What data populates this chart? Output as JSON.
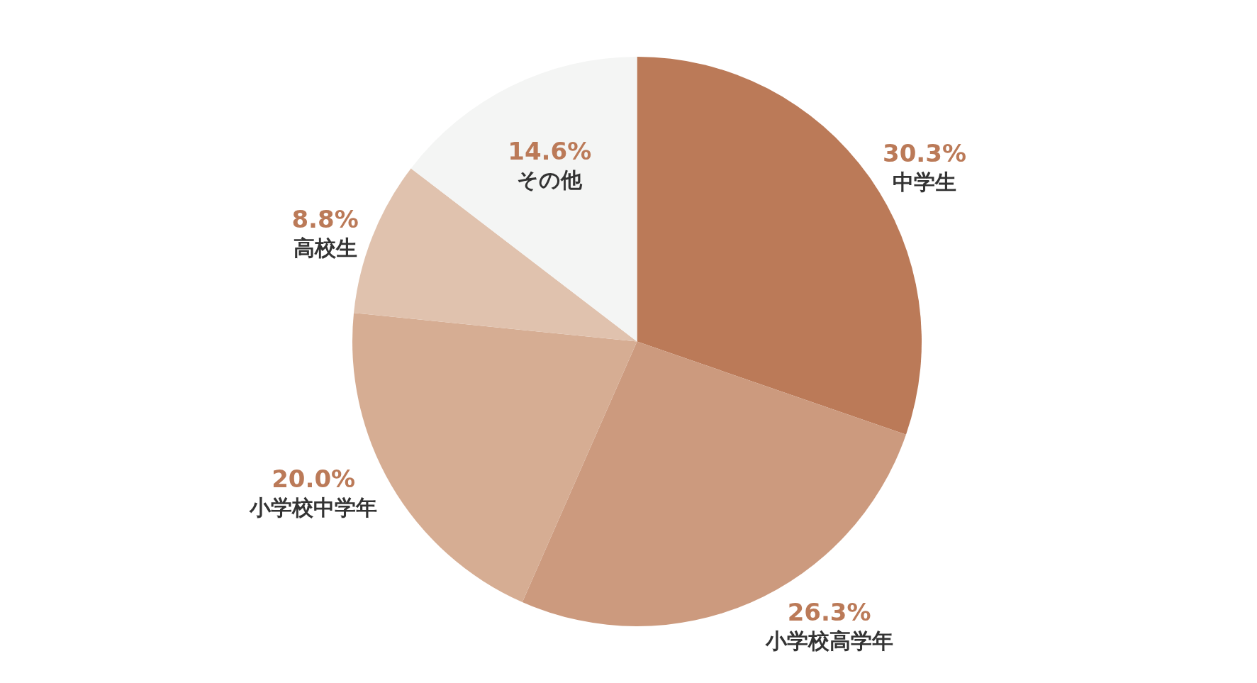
{
  "chart_data": {
    "type": "pie",
    "categories": [
      "中学生",
      "小学校高学年",
      "小学校中学年",
      "高校生",
      "その他"
    ],
    "values": [
      30.3,
      26.3,
      20.0,
      8.8,
      14.6
    ],
    "value_labels": [
      "30.3%",
      "26.3%",
      "20.0%",
      "8.8%",
      "14.6%"
    ],
    "colors": [
      "#bb7a58",
      "#cc9a7e",
      "#d6ad93",
      "#e0c2ae",
      "#f4f5f4"
    ],
    "legend": false
  }
}
